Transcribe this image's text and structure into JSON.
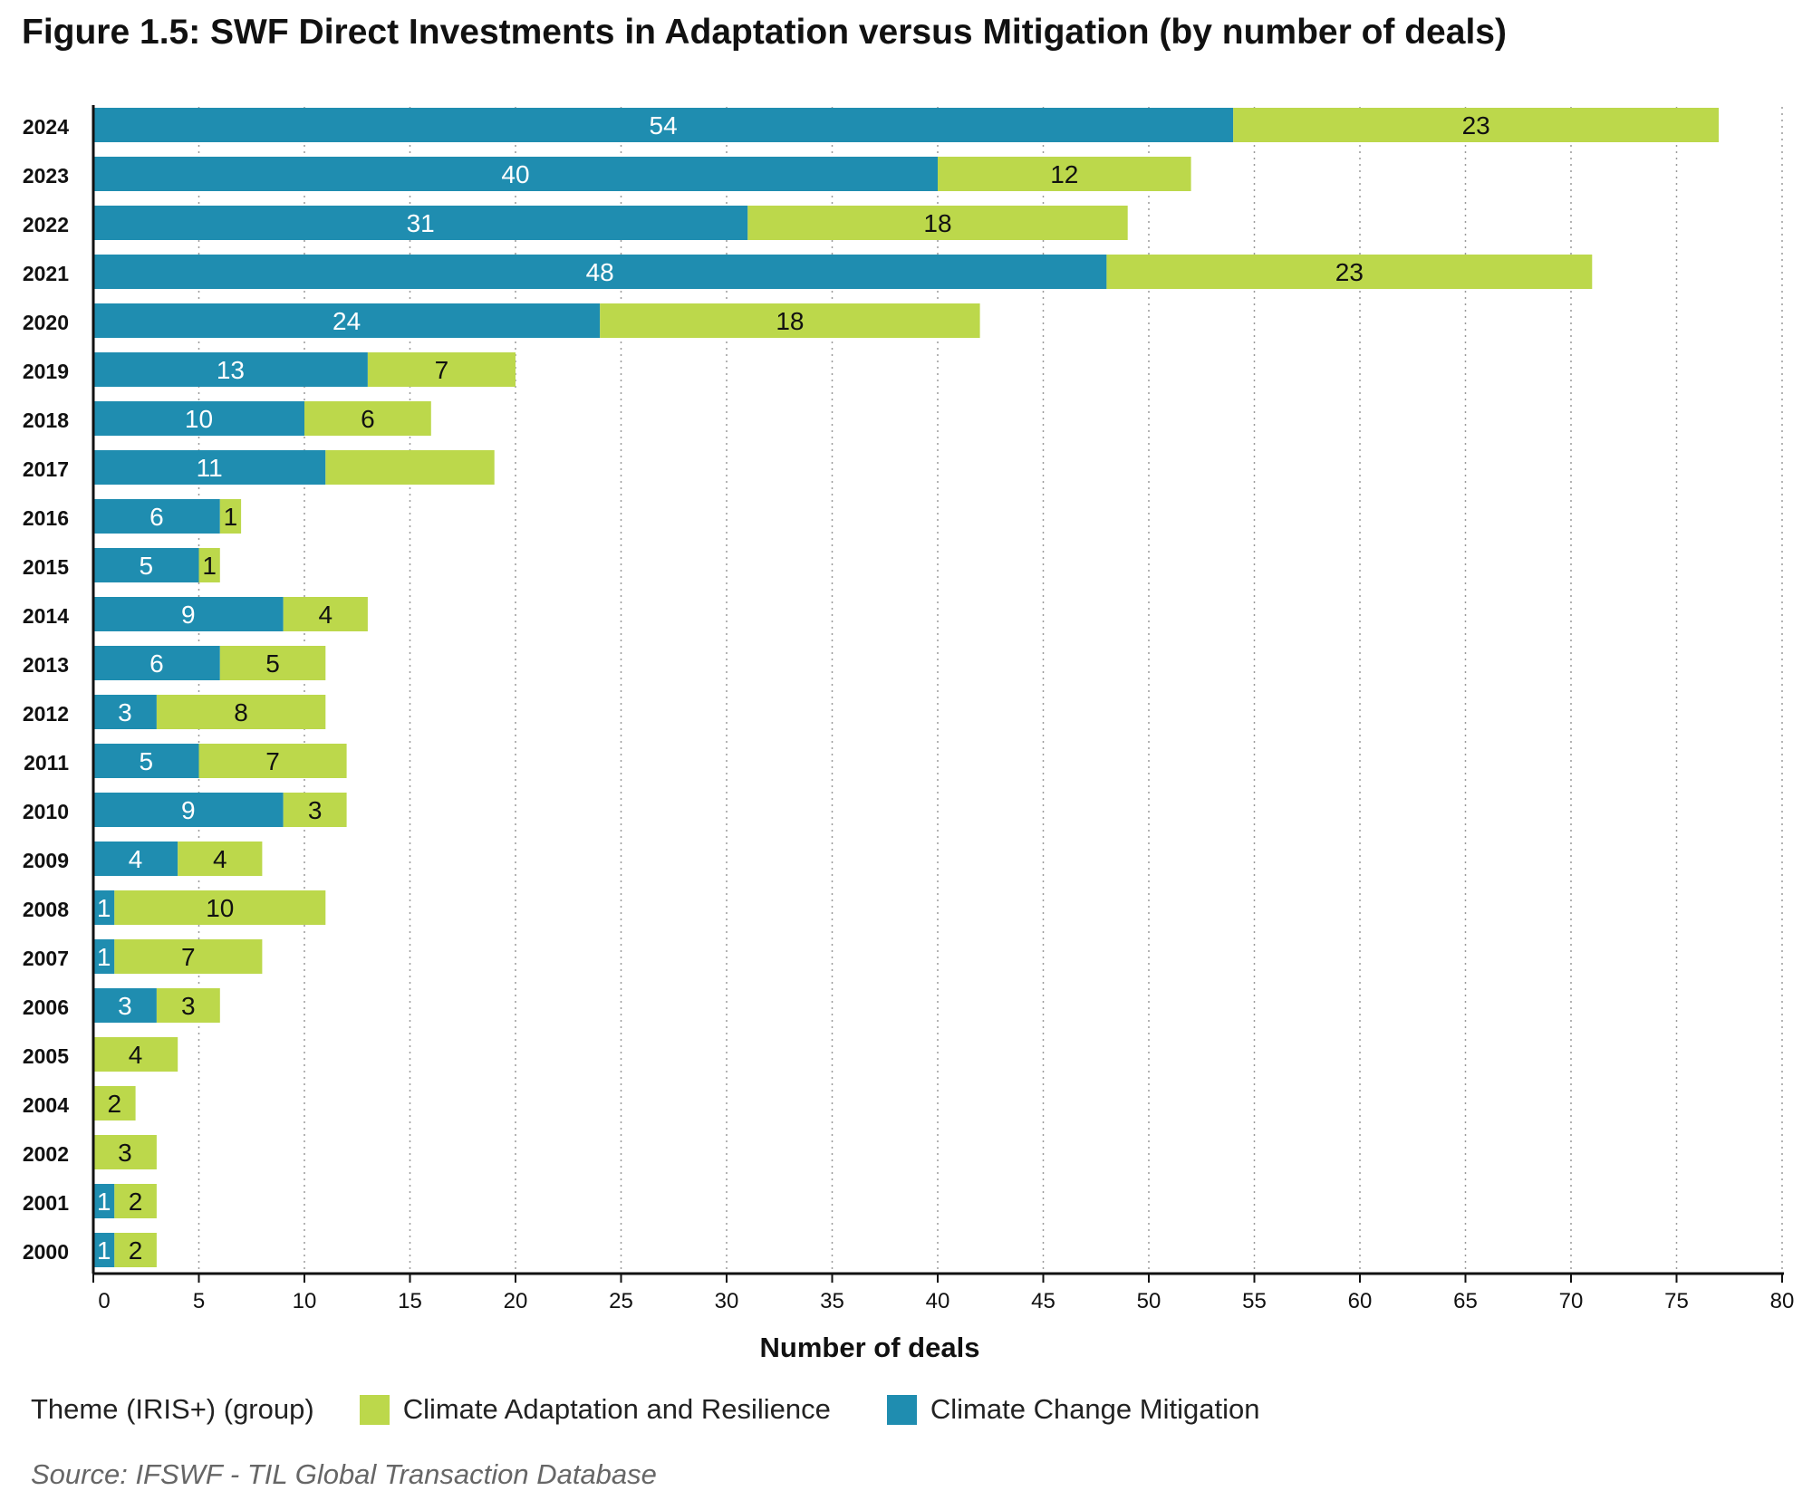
{
  "title": "Figure 1.5: SWF Direct Investments in Adaptation versus Mitigation (by number of deals)",
  "source": "Source: IFSWF - TIL Global Transaction Database",
  "legend": {
    "title": "Theme (IRIS+) (group)",
    "items": [
      {
        "label": "Climate Adaptation and Resilience",
        "color": "#bcd84b"
      },
      {
        "label": "Climate Change Mitigation",
        "color": "#1f8db0"
      }
    ]
  },
  "chart_data": {
    "type": "bar",
    "orientation": "horizontal",
    "stacked": true,
    "categories": [
      "2024",
      "2023",
      "2022",
      "2021",
      "2020",
      "2019",
      "2018",
      "2017",
      "2016",
      "2015",
      "2014",
      "2013",
      "2012",
      "2011",
      "2010",
      "2009",
      "2008",
      "2007",
      "2006",
      "2005",
      "2004",
      "2002",
      "2001",
      "2000"
    ],
    "series": [
      {
        "name": "Climate Change Mitigation",
        "color": "#1f8db0",
        "label_color": "#ffffff",
        "values": [
          54,
          40,
          31,
          48,
          24,
          13,
          10,
          11,
          6,
          5,
          9,
          6,
          3,
          5,
          9,
          4,
          1,
          1,
          3,
          0,
          0,
          0,
          1,
          1
        ],
        "labels": [
          "54",
          "40",
          "31",
          "48",
          "24",
          "13",
          "10",
          "11",
          "6",
          "5",
          "9",
          "6",
          "3",
          "5",
          "9",
          "4",
          "1",
          "1",
          "3",
          "",
          "",
          "",
          "1",
          "1"
        ]
      },
      {
        "name": "Climate Adaptation and Resilience",
        "color": "#bcd84b",
        "label_color": "#111111",
        "values": [
          23,
          12,
          18,
          23,
          18,
          7,
          6,
          8,
          1,
          1,
          4,
          5,
          8,
          7,
          3,
          4,
          10,
          7,
          3,
          4,
          2,
          3,
          2,
          2
        ],
        "labels": [
          "23",
          "12",
          "18",
          "23",
          "18",
          "7",
          "6",
          "",
          "1",
          "1",
          "4",
          "5",
          "8",
          "7",
          "3",
          "4",
          "10",
          "7",
          "3",
          "4",
          "2",
          "3",
          "2",
          "2"
        ]
      }
    ],
    "xlabel": "Number of deals",
    "ylabel": "",
    "xlim": [
      0,
      80
    ],
    "xticks": [
      0,
      5,
      10,
      15,
      20,
      25,
      30,
      35,
      40,
      45,
      50,
      55,
      60,
      65,
      70,
      75,
      80
    ],
    "grid": "vertical dotted"
  }
}
